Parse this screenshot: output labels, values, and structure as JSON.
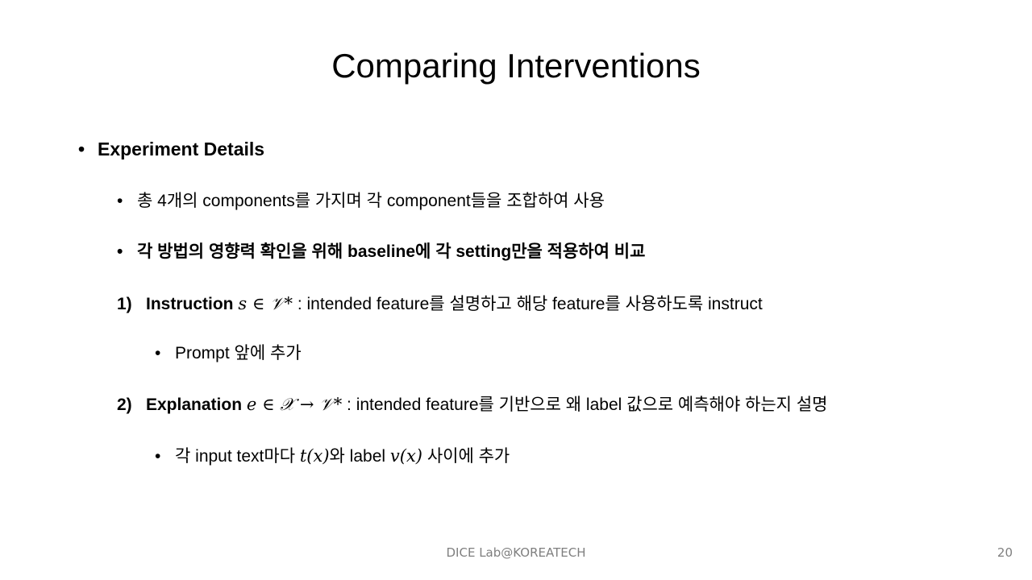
{
  "slide": {
    "title": "Comparing Interventions",
    "bullet_char": "•",
    "section_heading": "Experiment Details",
    "point1": "총 4개의 components를 가지며 각 component들을 조합하여 사용",
    "point2": "각 방법의 영향력 확인을 위해 baseline에 각 setting만을 적용하여 비교",
    "item1": {
      "number": "1)",
      "label": "Instruction",
      "math": "s ∈ 𝒱*",
      "text": " : intended feature를 설명하고 해당 feature를 사용하도록 instruct",
      "sub": "Prompt 앞에 추가"
    },
    "item2": {
      "number": "2)",
      "label": "Explanation",
      "math": "e ∈ 𝒳 → 𝒱*",
      "text": " : intended feature를 기반으로 왜 label 값으로 예측해야 하는지 설명",
      "sub_prefix": "각 input text마다 ",
      "sub_math1": "t(x)",
      "sub_mid": "와 label ",
      "sub_math2": "v(x)",
      "sub_suffix": " 사이에 추가"
    }
  },
  "footer": {
    "text": "DICE Lab@KOREATECH",
    "page_number": "20"
  }
}
